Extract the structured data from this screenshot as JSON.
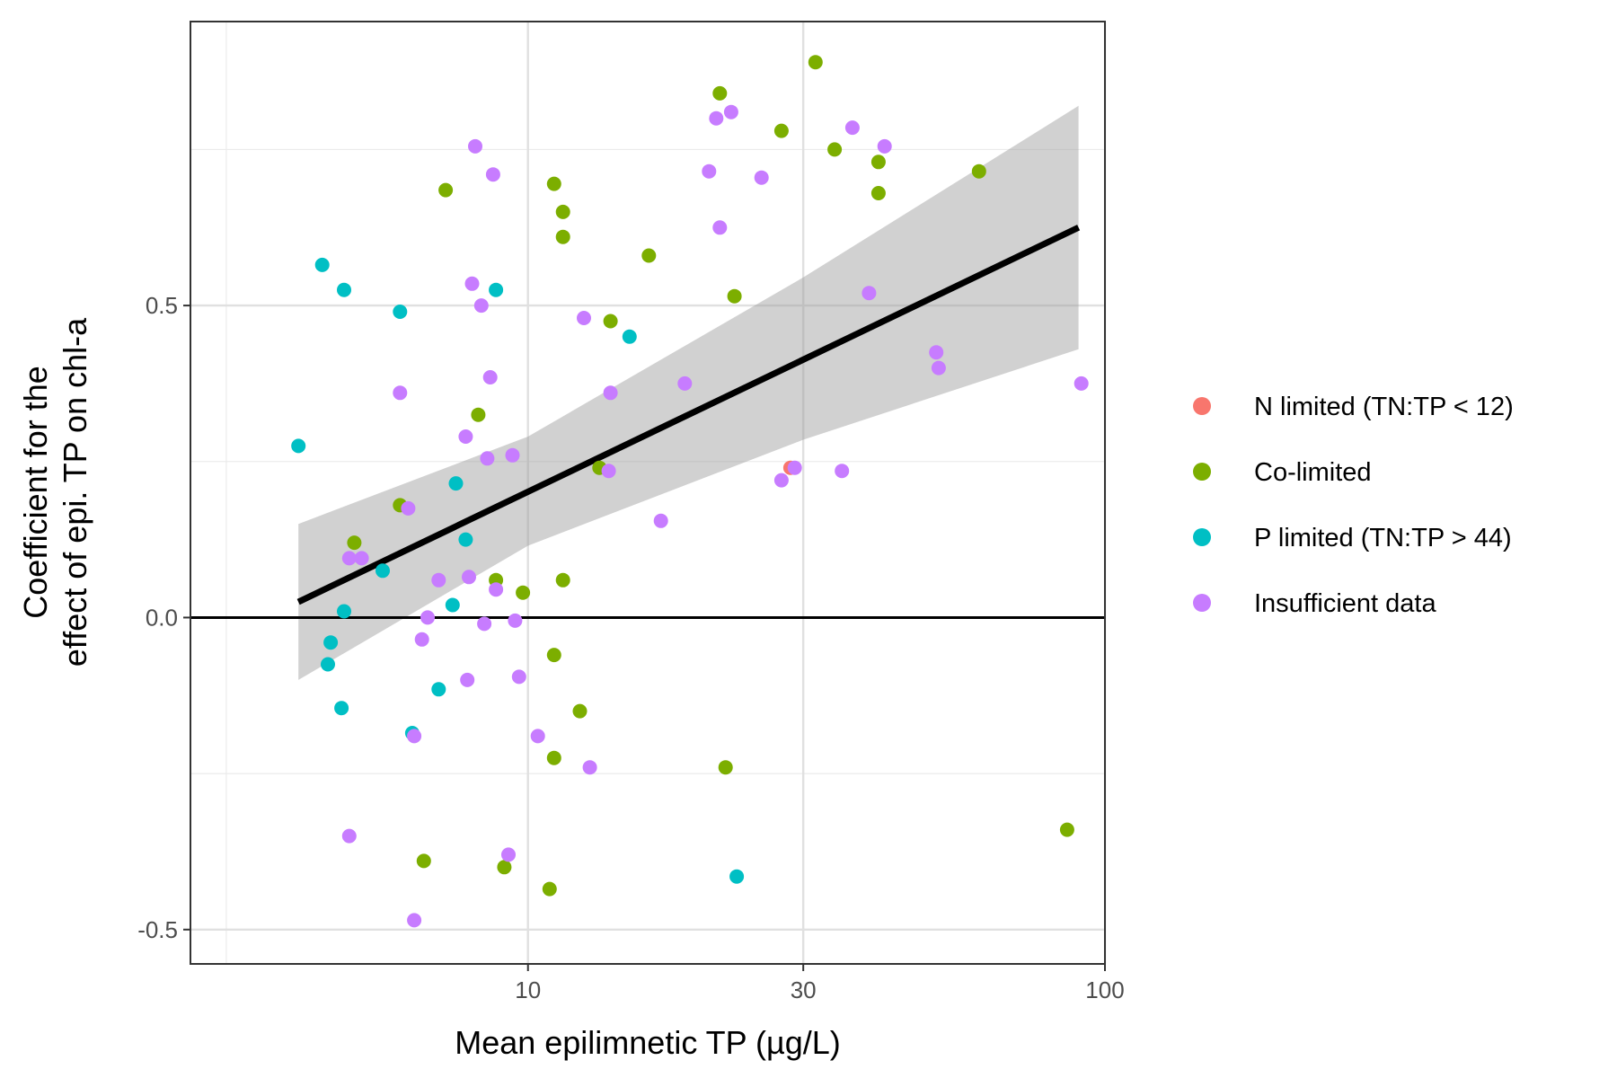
{
  "chart_data": {
    "type": "scatter",
    "xlabel": "Mean epilimnetic TP (µg/L)",
    "ylabel": [
      "Coefficient for the",
      "effect of epi. TP on chl-a"
    ],
    "x_scale": "log10",
    "xlim": [
      2.6,
      100
    ],
    "ylim": [
      -0.555,
      0.955
    ],
    "x_ticks": [
      10,
      30,
      100
    ],
    "x_tick_labels": [
      "10",
      "30",
      "100"
    ],
    "y_ticks": [
      -0.5,
      0.0,
      0.5
    ],
    "y_tick_labels": [
      "-0.5",
      "0.0",
      "0.5"
    ],
    "grid": true,
    "legend_position": "right",
    "reference_line_y": 0.0,
    "fit": {
      "type": "linear (log x)",
      "x": [
        4.0,
        90.0
      ],
      "y": [
        0.025,
        0.625
      ],
      "ci_x": [
        4.0,
        10.0,
        30.0,
        90.0
      ],
      "ci_lower": [
        -0.1,
        0.115,
        0.285,
        0.43
      ],
      "ci_upper": [
        0.15,
        0.29,
        0.545,
        0.82
      ]
    },
    "series": [
      {
        "name": "N limited (TN:TP < 12)",
        "color": "#F8766D",
        "points": [
          [
            28.5,
            0.24
          ]
        ]
      },
      {
        "name": "Co-limited",
        "color": "#7CAE00",
        "points": [
          [
            31.5,
            0.89
          ],
          [
            21.5,
            0.84
          ],
          [
            27.5,
            0.78
          ],
          [
            34.0,
            0.75
          ],
          [
            40.5,
            0.73
          ],
          [
            40.5,
            0.68
          ],
          [
            60.5,
            0.715
          ],
          [
            7.2,
            0.685
          ],
          [
            11.1,
            0.695
          ],
          [
            11.5,
            0.65
          ],
          [
            11.5,
            0.61
          ],
          [
            16.2,
            0.58
          ],
          [
            22.8,
            0.515
          ],
          [
            13.9,
            0.475
          ],
          [
            8.2,
            0.325
          ],
          [
            6.0,
            0.18
          ],
          [
            5.0,
            0.12
          ],
          [
            13.3,
            0.24
          ],
          [
            8.8,
            0.06
          ],
          [
            9.8,
            0.04
          ],
          [
            11.5,
            0.06
          ],
          [
            11.1,
            -0.06
          ],
          [
            12.3,
            -0.15
          ],
          [
            11.1,
            -0.225
          ],
          [
            22.0,
            -0.24
          ],
          [
            6.6,
            -0.39
          ],
          [
            9.1,
            -0.4
          ],
          [
            10.9,
            -0.435
          ],
          [
            86.0,
            -0.34
          ]
        ]
      },
      {
        "name": "P limited (TN:TP > 44)",
        "color": "#00BFC4",
        "points": [
          [
            4.4,
            0.565
          ],
          [
            4.8,
            0.525
          ],
          [
            6.0,
            0.49
          ],
          [
            8.8,
            0.525
          ],
          [
            15.0,
            0.45
          ],
          [
            4.0,
            0.275
          ],
          [
            7.5,
            0.215
          ],
          [
            7.8,
            0.125
          ],
          [
            5.6,
            0.075
          ],
          [
            4.8,
            0.01
          ],
          [
            7.4,
            0.02
          ],
          [
            4.55,
            -0.04
          ],
          [
            4.5,
            -0.075
          ],
          [
            4.75,
            -0.145
          ],
          [
            7.0,
            -0.115
          ],
          [
            6.3,
            -0.185
          ],
          [
            23.0,
            -0.415
          ]
        ]
      },
      {
        "name": "Insufficient data",
        "color": "#C77CFF",
        "points": [
          [
            8.1,
            0.755
          ],
          [
            8.7,
            0.71
          ],
          [
            22.5,
            0.81
          ],
          [
            21.2,
            0.8
          ],
          [
            36.5,
            0.785
          ],
          [
            41.5,
            0.755
          ],
          [
            20.6,
            0.715
          ],
          [
            25.4,
            0.705
          ],
          [
            21.5,
            0.625
          ],
          [
            8.0,
            0.535
          ],
          [
            8.3,
            0.5
          ],
          [
            12.5,
            0.48
          ],
          [
            39.0,
            0.52
          ],
          [
            8.6,
            0.385
          ],
          [
            6.0,
            0.36
          ],
          [
            13.9,
            0.36
          ],
          [
            18.7,
            0.375
          ],
          [
            51.0,
            0.425
          ],
          [
            51.5,
            0.4
          ],
          [
            91.0,
            0.375
          ],
          [
            7.8,
            0.29
          ],
          [
            8.5,
            0.255
          ],
          [
            9.4,
            0.26
          ],
          [
            6.2,
            0.175
          ],
          [
            13.8,
            0.235
          ],
          [
            29.0,
            0.24
          ],
          [
            27.5,
            0.22
          ],
          [
            35.0,
            0.235
          ],
          [
            17.0,
            0.155
          ],
          [
            4.9,
            0.095
          ],
          [
            5.15,
            0.095
          ],
          [
            7.0,
            0.06
          ],
          [
            7.9,
            0.065
          ],
          [
            8.8,
            0.045
          ],
          [
            6.7,
            0.0
          ],
          [
            8.4,
            -0.01
          ],
          [
            9.5,
            -0.005
          ],
          [
            6.55,
            -0.035
          ],
          [
            7.85,
            -0.1
          ],
          [
            9.65,
            -0.095
          ],
          [
            6.35,
            -0.19
          ],
          [
            10.4,
            -0.19
          ],
          [
            12.8,
            -0.24
          ],
          [
            4.9,
            -0.35
          ],
          [
            9.25,
            -0.38
          ],
          [
            6.35,
            -0.485
          ]
        ]
      }
    ]
  }
}
